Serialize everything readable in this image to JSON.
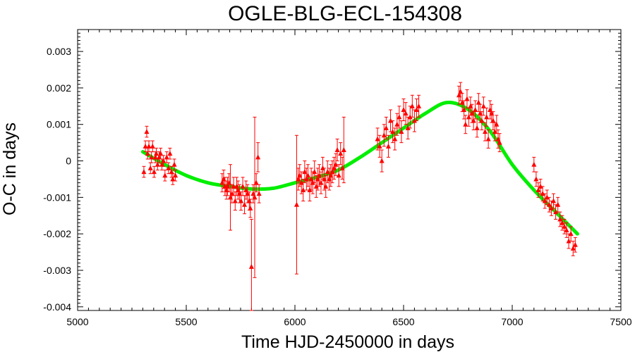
{
  "chart_data": {
    "type": "scatter",
    "title": "OGLE-BLG-ECL-154308",
    "xlabel": "Time HJD-2450000 in days",
    "ylabel": "O-C in days",
    "xlim": [
      5000,
      7500
    ],
    "ylim": [
      -0.0041,
      0.0036
    ],
    "x_ticks": [
      5000,
      5500,
      6000,
      6500,
      7000,
      7500
    ],
    "x_tick_labels": [
      "5000",
      "5500",
      "6000",
      "6500",
      "7000",
      "7500"
    ],
    "y_ticks": [
      0.003,
      0.002,
      0.001,
      0,
      -0.001,
      -0.002,
      -0.003,
      -0.004
    ],
    "y_tick_labels": [
      "0.003",
      "0.002",
      "0.001",
      "0",
      "-0.001",
      "-0.002",
      "-0.003",
      "-0.004"
    ],
    "grid": false,
    "colors": {
      "points": "#ff0000",
      "fit": "#00ee00",
      "axes": "#000000",
      "background": "#ffffff"
    },
    "series": [
      {
        "kind": "observations",
        "marker": "triangle",
        "x": [
          5305,
          5312,
          5318,
          5322,
          5328,
          5335,
          5340,
          5345,
          5352,
          5358,
          5362,
          5368,
          5375,
          5382,
          5388,
          5395,
          5402,
          5410,
          5418,
          5425,
          5432,
          5438,
          5445,
          5450,
          5665,
          5672,
          5678,
          5685,
          5690,
          5697,
          5703,
          5710,
          5718,
          5725,
          5732,
          5738,
          5745,
          5752,
          5760,
          5768,
          5775,
          5782,
          5790,
          5795,
          5800,
          5808,
          5815,
          5822,
          5830,
          5835,
          6008,
          6015,
          6022,
          6030,
          6038,
          6045,
          6053,
          6060,
          6068,
          6075,
          6082,
          6090,
          6098,
          6105,
          6112,
          6120,
          6128,
          6135,
          6142,
          6150,
          6158,
          6165,
          6172,
          6180,
          6188,
          6195,
          6202,
          6210,
          6218,
          6225,
          6380,
          6390,
          6400,
          6410,
          6420,
          6430,
          6440,
          6450,
          6460,
          6470,
          6480,
          6490,
          6500,
          6510,
          6520,
          6530,
          6540,
          6550,
          6560,
          6570,
          6755,
          6762,
          6770,
          6778,
          6785,
          6792,
          6800,
          6808,
          6815,
          6822,
          6830,
          6838,
          6845,
          6852,
          6860,
          6868,
          6875,
          6882,
          6890,
          6898,
          6905,
          6912,
          6920,
          6928,
          6935,
          6942,
          7100,
          7110,
          7120,
          7130,
          7140,
          7150,
          7160,
          7170,
          7180,
          7190,
          7200,
          7210,
          7220,
          7230,
          7240,
          7250,
          7260,
          7270,
          7280,
          7290
        ],
        "y": [
          -0.0003,
          0.0004,
          0.0008,
          0.0002,
          0.0004,
          -0.0002,
          0.0001,
          0.0004,
          -0.0003,
          0.0001,
          0.0002,
          -0.0001,
          0.0001,
          0.0002,
          -0.0001,
          0.0,
          -0.0004,
          0.0001,
          -0.0002,
          0.0002,
          -0.0003,
          -0.0005,
          -0.0001,
          -0.0004,
          -0.0006,
          -0.0005,
          -0.0007,
          -0.0008,
          -0.0007,
          -0.0006,
          -0.001,
          -0.0009,
          -0.0007,
          -0.0011,
          -0.0007,
          -0.0008,
          -0.0009,
          -0.0011,
          -0.0007,
          -0.0012,
          -0.0008,
          -0.0009,
          -0.0011,
          -0.0013,
          -0.0029,
          -0.0009,
          -0.001,
          -0.0006,
          0.0001,
          -0.0009,
          -0.0012,
          -0.0005,
          -0.0004,
          -0.0006,
          -0.0008,
          -0.0003,
          -0.0005,
          -0.0004,
          -0.0008,
          -0.0005,
          -0.0006,
          -0.0003,
          -0.0007,
          -0.0005,
          -0.0004,
          -0.0006,
          -0.0002,
          -0.0005,
          -0.0007,
          -0.0003,
          -0.0005,
          -0.0004,
          -0.0003,
          -0.0002,
          -0.0001,
          0.0003,
          -0.0004,
          0.0002,
          -0.0002,
          0.0003,
          0.0006,
          0.0004,
          0.0,
          0.0007,
          0.0009,
          0.0004,
          0.0011,
          0.0008,
          0.0006,
          0.001,
          0.0012,
          0.0008,
          0.0014,
          0.0013,
          0.0009,
          0.0012,
          0.0015,
          0.0011,
          0.0014,
          0.0015,
          0.0018,
          0.0019,
          0.0016,
          0.0014,
          0.001,
          0.0017,
          0.0012,
          0.0015,
          0.0013,
          0.0011,
          0.0014,
          0.0009,
          0.0016,
          0.0013,
          0.0011,
          0.0015,
          0.0008,
          0.0012,
          0.0006,
          0.0014,
          0.0013,
          0.0011,
          0.0008,
          0.001,
          0.0006,
          0.0005,
          -0.0001,
          -0.0005,
          -0.0008,
          -0.0007,
          -0.0009,
          -0.0011,
          -0.001,
          -0.0012,
          -0.0013,
          -0.0011,
          -0.0014,
          -0.0012,
          -0.0016,
          -0.0017,
          -0.0018,
          -0.0019,
          -0.0022,
          -0.002,
          -0.0024,
          -0.0023
        ],
        "err": [
          0.00015,
          0.00015,
          0.00015,
          0.00015,
          0.00015,
          0.00015,
          0.00015,
          0.00015,
          0.00015,
          0.00015,
          0.00015,
          0.00015,
          0.00015,
          0.00015,
          0.00015,
          0.00015,
          0.00015,
          0.00015,
          0.00015,
          0.00015,
          0.00015,
          0.00015,
          0.00015,
          0.00015,
          0.00025,
          0.00025,
          0.00025,
          0.00025,
          0.00025,
          0.00025,
          0.0009,
          0.00025,
          0.00025,
          0.00025,
          0.00025,
          0.00025,
          0.00025,
          0.00025,
          0.00025,
          0.00025,
          0.00025,
          0.00025,
          0.00025,
          0.00025,
          0.0013,
          0.00025,
          0.0022,
          0.00025,
          0.0004,
          0.00025,
          0.0019,
          0.0003,
          0.0003,
          0.0003,
          0.0003,
          0.0003,
          0.0003,
          0.0003,
          0.0003,
          0.0003,
          0.0003,
          0.0003,
          0.0003,
          0.0003,
          0.0003,
          0.0003,
          0.0003,
          0.0003,
          0.0003,
          0.0003,
          0.0003,
          0.0003,
          0.0003,
          0.0003,
          0.0003,
          0.0003,
          0.0003,
          0.0003,
          0.0003,
          0.0009,
          0.0003,
          0.0003,
          0.0003,
          0.0003,
          0.0003,
          0.0003,
          0.0003,
          0.0003,
          0.0003,
          0.0003,
          0.0003,
          0.0003,
          0.0003,
          0.0003,
          0.0003,
          0.0003,
          0.0003,
          0.0003,
          0.0003,
          0.0003,
          0.00025,
          0.00025,
          0.00025,
          0.00025,
          0.00025,
          0.00025,
          0.00025,
          0.00025,
          0.00025,
          0.00025,
          0.00025,
          0.00025,
          0.00025,
          0.00025,
          0.00025,
          0.00025,
          0.00025,
          0.00025,
          0.00025,
          0.00025,
          0.00025,
          0.00025,
          0.00025,
          0.00025,
          0.00025,
          0.00025,
          0.0002,
          0.0002,
          0.0002,
          0.0002,
          0.0002,
          0.0002,
          0.0002,
          0.0002,
          0.0002,
          0.0002,
          0.0002,
          0.0002,
          0.0002,
          0.0002,
          0.0002,
          0.0002,
          0.0002,
          0.0002,
          0.0002,
          0.0002
        ]
      },
      {
        "kind": "fit",
        "line": true,
        "x": [
          5300,
          5400,
          5500,
          5600,
          5700,
          5800,
          5900,
          6000,
          6100,
          6200,
          6300,
          6400,
          6500,
          6600,
          6700,
          6800,
          6900,
          7000,
          7100,
          7200,
          7300
        ],
        "y": [
          0.00025,
          -0.0001,
          -0.0004,
          -0.0006,
          -0.0007,
          -0.00077,
          -0.00075,
          -0.0006,
          -0.00045,
          -0.00025,
          0.0001,
          0.0005,
          0.0009,
          0.0013,
          0.0016,
          0.0014,
          0.0008,
          -0.0001,
          -0.0008,
          -0.0014,
          -0.002
        ]
      }
    ]
  }
}
